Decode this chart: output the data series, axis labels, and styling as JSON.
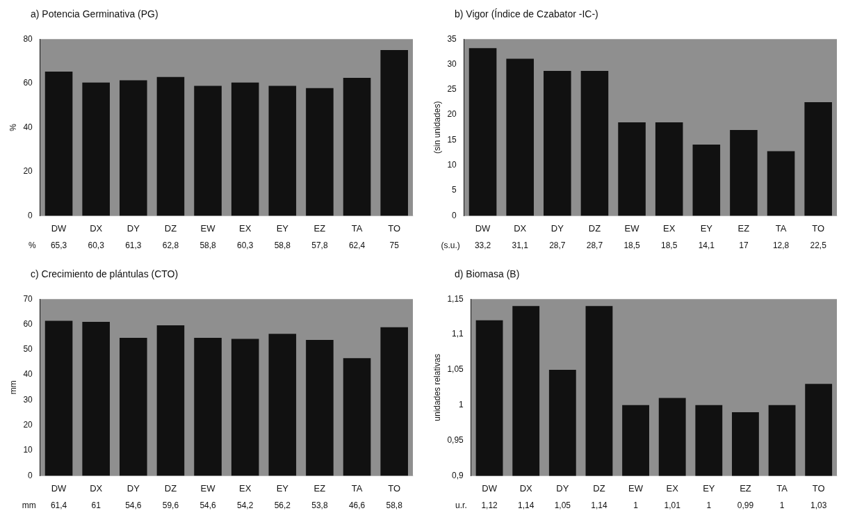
{
  "chart_data": [
    {
      "type": "bar",
      "title": "a)  Potencia Germinativa (PG)",
      "ylabel": "%",
      "categories": [
        "DW",
        "DX",
        "DY",
        "DZ",
        "EW",
        "EX",
        "EY",
        "EZ",
        "TA",
        "TO"
      ],
      "values": [
        65.3,
        60.3,
        61.3,
        62.8,
        58.8,
        60.3,
        58.8,
        57.8,
        62.4,
        75
      ],
      "color": "#111111",
      "ylim": [
        0,
        80
      ],
      "yticks": [
        0,
        20,
        40,
        60,
        80
      ],
      "value_labels": [
        "65,3",
        "60,3",
        "61,3",
        "62,8",
        "58,8",
        "60,3",
        "58,8",
        "57,8",
        "62,4",
        "75"
      ],
      "annotations": [
        "%"
      ]
    },
    {
      "type": "bar",
      "title": "b)  Vigor (Índice de Czabator -IC-)",
      "ylabel": "(sin unidades)",
      "categories": [
        "DW",
        "DX",
        "DY",
        "DZ",
        "EW",
        "EX",
        "EY",
        "EZ",
        "TA",
        "TO"
      ],
      "values": [
        33.2,
        31.1,
        28.7,
        28.7,
        18.5,
        18.5,
        14.1,
        17,
        12.8,
        22.5
      ],
      "color": "#111111",
      "ylim": [
        0,
        35
      ],
      "yticks": [
        0,
        5,
        10,
        15,
        20,
        25,
        30,
        35
      ],
      "value_labels": [
        "33,2",
        "31,1",
        "28,7",
        "28,7",
        "18,5",
        "18,5",
        "14,1",
        "17",
        "12,8",
        "22,5"
      ],
      "annotations": [
        "(s.u.)"
      ]
    },
    {
      "type": "bar",
      "title": "c)  Crecimiento de plántulas (CTO)",
      "ylabel": "mm",
      "categories": [
        "DW",
        "DX",
        "DY",
        "DZ",
        "EW",
        "EX",
        "EY",
        "EZ",
        "TA",
        "TO"
      ],
      "values": [
        61.4,
        61,
        54.6,
        59.6,
        54.6,
        54.2,
        56.2,
        53.8,
        46.6,
        58.8
      ],
      "color": "#111111",
      "ylim": [
        0,
        70
      ],
      "yticks": [
        0,
        10,
        20,
        30,
        40,
        50,
        60,
        70
      ],
      "value_labels": [
        "61,4",
        "61",
        "54,6",
        "59,6",
        "54,6",
        "54,2",
        "56,2",
        "53,8",
        "46,6",
        "58,8"
      ],
      "annotations": [
        "mm"
      ]
    },
    {
      "type": "bar",
      "title": "d)  Biomasa (B)",
      "ylabel": "unidades relativas",
      "categories": [
        "DW",
        "DX",
        "DY",
        "DZ",
        "EW",
        "EX",
        "EY",
        "EZ",
        "TA",
        "TO"
      ],
      "values": [
        1.12,
        1.14,
        1.05,
        1.14,
        1,
        1.01,
        1,
        0.99,
        1,
        1.03
      ],
      "color": "#111111",
      "ylim": [
        0.9,
        1.15
      ],
      "yticks": [
        {
          "value": 0.9,
          "label": "0,9"
        },
        {
          "value": 0.95,
          "label": "0,95"
        },
        1,
        {
          "value": 1.05,
          "label": "1,05"
        },
        {
          "value": 1.1,
          "label": "1,1"
        },
        {
          "value": 1.15,
          "label": "1,15"
        }
      ],
      "value_labels": [
        "1,12",
        "1,14",
        "1,05",
        "1,14",
        "1",
        "1,01",
        "1",
        "0,99",
        "1",
        "1,03"
      ],
      "annotations": [
        "u.r."
      ]
    }
  ]
}
